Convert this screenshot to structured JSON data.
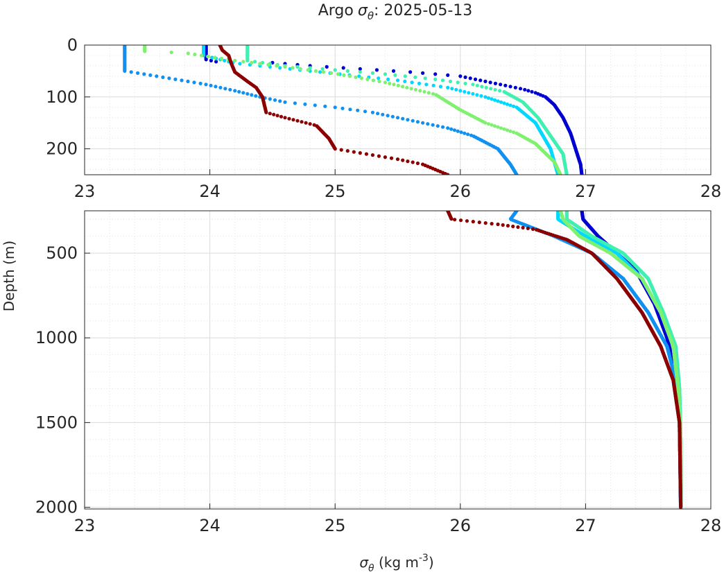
{
  "chart_data": {
    "type": "scatter",
    "title_prefix": "Argo",
    "title_symbol": "σ",
    "title_subscript": "θ",
    "title_date": ": 2025-05-13",
    "xlabel_symbol": "σ",
    "xlabel_subscript": "θ",
    "xlabel_unit": " (kg m",
    "xlabel_exp": "-3",
    "xlabel_close": ")",
    "ylabel": "Depth (m)",
    "grid": true,
    "y_reversed": true,
    "panels": [
      {
        "xlim": [
          23,
          28
        ],
        "ylim": [
          0,
          250
        ],
        "xticks": [
          "23",
          "24",
          "25",
          "26",
          "27",
          "28"
        ],
        "xtick_values": [
          23,
          24,
          25,
          26,
          27,
          28
        ],
        "yticks": [
          "0",
          "100",
          "200"
        ],
        "ytick_values": [
          0,
          100,
          200
        ]
      },
      {
        "xlim": [
          23,
          28
        ],
        "ylim": [
          250,
          2010
        ],
        "xticks": [
          "23",
          "24",
          "25",
          "26",
          "27",
          "28"
        ],
        "xtick_values": [
          23,
          24,
          25,
          26,
          27,
          28
        ],
        "yticks": [
          "500",
          "1000",
          "1500",
          "2000"
        ],
        "ytick_values": [
          500,
          1000,
          1500,
          2000
        ]
      }
    ],
    "series": [
      {
        "color": "#0000d0",
        "points": [
          [
            23.97,
            0
          ],
          [
            23.97,
            28
          ],
          [
            24.05,
            32
          ],
          [
            24.4,
            32
          ],
          [
            24.8,
            40
          ],
          [
            25.2,
            46
          ],
          [
            25.6,
            52
          ],
          [
            26.0,
            60
          ],
          [
            26.3,
            75
          ],
          [
            26.5,
            85
          ],
          [
            26.6,
            92
          ],
          [
            26.68,
            100
          ],
          [
            26.75,
            115
          ],
          [
            26.82,
            140
          ],
          [
            26.88,
            170
          ],
          [
            26.92,
            200
          ],
          [
            26.96,
            230
          ],
          [
            26.97,
            250
          ],
          [
            26.98,
            300
          ],
          [
            27.1,
            400
          ],
          [
            27.25,
            500
          ],
          [
            27.4,
            600
          ],
          [
            27.55,
            800
          ],
          [
            27.65,
            1000
          ],
          [
            27.72,
            1200
          ],
          [
            27.75,
            1500
          ],
          [
            27.76,
            2000
          ]
        ]
      },
      {
        "color": "#1090f0",
        "points": [
          [
            23.32,
            0
          ],
          [
            23.32,
            50
          ],
          [
            23.45,
            55
          ],
          [
            23.7,
            65
          ],
          [
            23.95,
            75
          ],
          [
            24.2,
            88
          ],
          [
            24.4,
            100
          ],
          [
            24.6,
            110
          ],
          [
            25.0,
            120
          ],
          [
            25.3,
            130
          ],
          [
            25.6,
            145
          ],
          [
            25.9,
            160
          ],
          [
            26.1,
            175
          ],
          [
            26.3,
            200
          ],
          [
            26.4,
            230
          ],
          [
            26.45,
            250
          ],
          [
            26.4,
            300
          ],
          [
            26.75,
            400
          ],
          [
            27.05,
            500
          ],
          [
            27.3,
            650
          ],
          [
            27.5,
            850
          ],
          [
            27.65,
            1050
          ],
          [
            27.72,
            1250
          ],
          [
            27.75,
            1500
          ],
          [
            27.76,
            2020
          ]
        ]
      },
      {
        "color": "#00d8ff",
        "points": [
          [
            23.95,
            0
          ],
          [
            23.95,
            20
          ],
          [
            24.2,
            35
          ],
          [
            24.6,
            45
          ],
          [
            25.0,
            55
          ],
          [
            25.5,
            68
          ],
          [
            25.9,
            82
          ],
          [
            26.2,
            100
          ],
          [
            26.45,
            120
          ],
          [
            26.6,
            150
          ],
          [
            26.72,
            200
          ],
          [
            26.78,
            250
          ],
          [
            26.78,
            300
          ],
          [
            27.0,
            400
          ],
          [
            27.25,
            500
          ],
          [
            27.45,
            650
          ],
          [
            27.6,
            850
          ],
          [
            27.7,
            1050
          ],
          [
            27.74,
            1300
          ],
          [
            27.76,
            1600
          ],
          [
            27.76,
            2000
          ]
        ]
      },
      {
        "color": "#40f0b0",
        "points": [
          [
            24.3,
            0
          ],
          [
            24.3,
            30
          ],
          [
            24.6,
            40
          ],
          [
            25.0,
            48
          ],
          [
            25.4,
            56
          ],
          [
            25.8,
            66
          ],
          [
            26.1,
            76
          ],
          [
            26.35,
            90
          ],
          [
            26.5,
            110
          ],
          [
            26.62,
            140
          ],
          [
            26.72,
            175
          ],
          [
            26.82,
            210
          ],
          [
            26.85,
            250
          ],
          [
            26.85,
            300
          ],
          [
            27.05,
            400
          ],
          [
            27.3,
            500
          ],
          [
            27.5,
            650
          ],
          [
            27.62,
            850
          ],
          [
            27.72,
            1050
          ],
          [
            27.75,
            1300
          ],
          [
            27.76,
            1600
          ],
          [
            27.76,
            2000
          ]
        ]
      },
      {
        "color": "#80f070",
        "points": [
          [
            23.48,
            0
          ],
          [
            23.48,
            12
          ],
          [
            23.8,
            15
          ],
          [
            24.2,
            30
          ],
          [
            24.6,
            42
          ],
          [
            25.0,
            55
          ],
          [
            25.4,
            72
          ],
          [
            25.8,
            95
          ],
          [
            26.0,
            125
          ],
          [
            26.2,
            150
          ],
          [
            26.45,
            170
          ],
          [
            26.6,
            190
          ],
          [
            26.75,
            225
          ],
          [
            26.8,
            250
          ],
          [
            26.82,
            300
          ],
          [
            26.95,
            400
          ],
          [
            27.2,
            500
          ],
          [
            27.45,
            650
          ],
          [
            27.6,
            850
          ],
          [
            27.7,
            1050
          ],
          [
            27.74,
            1300
          ],
          [
            27.76,
            1600
          ],
          [
            27.76,
            2000
          ]
        ]
      },
      {
        "color": "#8b0000",
        "points": [
          [
            24.08,
            0
          ],
          [
            24.1,
            10
          ],
          [
            24.15,
            20
          ],
          [
            24.17,
            35
          ],
          [
            24.2,
            52
          ],
          [
            24.3,
            70
          ],
          [
            24.37,
            82
          ],
          [
            24.42,
            100
          ],
          [
            24.45,
            130
          ],
          [
            24.6,
            140
          ],
          [
            24.85,
            155
          ],
          [
            24.95,
            180
          ],
          [
            25.0,
            200
          ],
          [
            25.25,
            210
          ],
          [
            25.5,
            220
          ],
          [
            25.7,
            230
          ],
          [
            25.9,
            250
          ],
          [
            25.93,
            300
          ],
          [
            26.3,
            330
          ],
          [
            26.6,
            360
          ],
          [
            26.85,
            420
          ],
          [
            27.05,
            500
          ],
          [
            27.25,
            650
          ],
          [
            27.45,
            850
          ],
          [
            27.6,
            1050
          ],
          [
            27.7,
            1250
          ],
          [
            27.75,
            1500
          ],
          [
            27.76,
            2000
          ]
        ]
      }
    ]
  }
}
